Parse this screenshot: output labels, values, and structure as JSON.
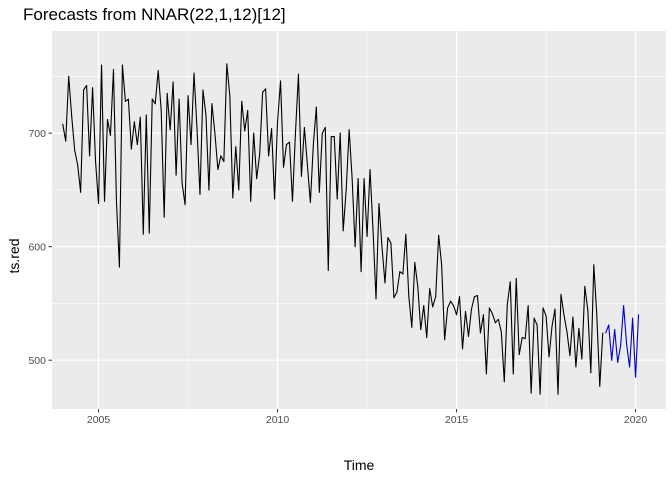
{
  "chart_data": {
    "type": "line",
    "title": "Forecasts from NNAR(22,1,12)[12]",
    "xlabel": "Time",
    "ylabel": "ts.red",
    "xlim": [
      2003.7,
      2020.85
    ],
    "ylim": [
      457,
      790
    ],
    "x_ticks": [
      2005,
      2010,
      2015,
      2020
    ],
    "x_tick_labels": [
      "2005",
      "2010",
      "2015",
      "2020"
    ],
    "y_ticks": [
      500,
      600,
      700
    ],
    "y_tick_labels": [
      "500",
      "600",
      "700"
    ],
    "grid": true,
    "legend": "none",
    "start": 2004.0,
    "step": 0.08333333,
    "series": [
      {
        "role": "observed",
        "color": "#000000",
        "values": [
          708,
          693,
          750,
          715,
          685,
          672,
          648,
          738,
          742,
          680,
          740,
          675,
          638,
          760,
          640,
          712,
          698,
          756,
          640,
          582,
          760,
          728,
          730,
          686,
          710,
          690,
          714,
          611,
          716,
          612,
          730,
          726,
          755,
          720,
          626,
          735,
          703,
          745,
          663,
          730,
          656,
          637,
          733,
          690,
          753,
          704,
          646,
          738,
          716,
          650,
          726,
          700,
          668,
          680,
          675,
          761,
          733,
          643,
          688,
          650,
          728,
          702,
          720,
          640,
          700,
          660,
          681,
          736,
          739,
          680,
          704,
          642,
          710,
          746,
          670,
          690,
          692,
          640,
          700,
          752,
          662,
          705,
          672,
          639,
          690,
          723,
          648,
          700,
          705,
          579,
          697,
          697,
          642,
          700,
          614,
          650,
          703,
          660,
          600,
          660,
          578,
          660,
          609,
          668,
          615,
          554,
          638,
          600,
          568,
          608,
          603,
          555,
          560,
          578,
          576,
          611,
          556,
          529,
          586,
          565,
          527,
          548,
          520,
          563,
          547,
          556,
          610,
          584,
          518,
          546,
          552,
          548,
          540,
          556,
          510,
          543,
          521,
          545,
          556,
          557,
          524,
          540,
          488,
          546,
          541,
          533,
          536,
          525,
          481,
          549,
          569,
          488,
          572,
          505,
          520,
          519,
          548,
          471,
          537,
          531,
          470,
          546,
          539,
          503,
          530,
          545,
          470,
          558,
          540,
          525,
          504,
          538,
          494,
          528,
          501,
          565,
          544,
          489,
          584,
          540,
          477,
          524
        ]
      },
      {
        "role": "forecast",
        "color": "#0000cc",
        "values": [
          524,
          531,
          500,
          527,
          498,
          513,
          548,
          514,
          494,
          537,
          485,
          540
        ]
      }
    ]
  }
}
